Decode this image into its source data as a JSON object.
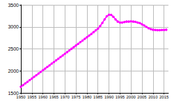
{
  "chart_data": {
    "type": "line",
    "x": [
      1950,
      1951,
      1952,
      1953,
      1954,
      1955,
      1956,
      1957,
      1958,
      1959,
      1960,
      1961,
      1962,
      1963,
      1964,
      1965,
      1966,
      1967,
      1968,
      1969,
      1970,
      1971,
      1972,
      1973,
      1974,
      1975,
      1976,
      1977,
      1978,
      1979,
      1980,
      1981,
      1982,
      1983,
      1984,
      1985,
      1986,
      1987,
      1988,
      1989,
      1990,
      1991,
      1992,
      1993,
      1994,
      1995,
      1996,
      1997,
      1998,
      1999,
      2000,
      2001,
      2002,
      2003,
      2004,
      2005,
      2006,
      2007,
      2008,
      2009,
      2010,
      2011,
      2012,
      2013,
      2014,
      2015,
      2016
    ],
    "values": [
      1640,
      1678,
      1715,
      1752,
      1790,
      1827,
      1865,
      1902,
      1940,
      1977,
      2015,
      2052,
      2090,
      2127,
      2165,
      2202,
      2240,
      2277,
      2315,
      2352,
      2390,
      2427,
      2465,
      2502,
      2540,
      2577,
      2615,
      2652,
      2690,
      2727,
      2765,
      2802,
      2840,
      2880,
      2920,
      2960,
      3020,
      3090,
      3170,
      3240,
      3275,
      3270,
      3230,
      3170,
      3120,
      3100,
      3100,
      3110,
      3120,
      3120,
      3125,
      3120,
      3115,
      3100,
      3085,
      3060,
      3030,
      3000,
      2970,
      2950,
      2935,
      2930,
      2925,
      2925,
      2930,
      2930,
      2935
    ],
    "color": "#ff00ff",
    "marker": "circle",
    "xlim": [
      1950,
      2017
    ],
    "xticks": [
      1950,
      1955,
      1960,
      1965,
      1970,
      1975,
      1980,
      1985,
      1990,
      1995,
      2000,
      2005,
      2010,
      2015
    ],
    "ylim": [
      1500,
      3500
    ],
    "yticks": [
      1500,
      2000,
      2500,
      3000,
      3500
    ],
    "grid": true
  }
}
